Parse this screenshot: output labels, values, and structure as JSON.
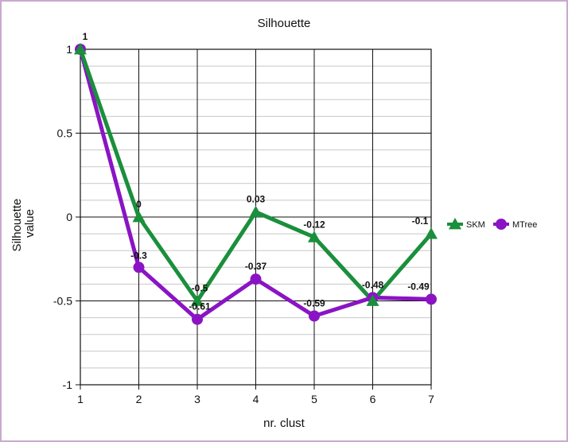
{
  "chart_data": {
    "type": "line",
    "title": "Silhouette",
    "xlabel": "nr. clust",
    "ylabel": [
      "Silhouette",
      "value"
    ],
    "x": [
      1,
      2,
      3,
      4,
      5,
      6,
      7
    ],
    "xlim": [
      1,
      7
    ],
    "ylim": [
      -1,
      1
    ],
    "yticks": [
      1,
      0.5,
      0,
      -0.5,
      -1
    ],
    "yticks_labels": [
      "1",
      "0.5",
      "0",
      "-0.5",
      "-1"
    ],
    "xticks_labels": [
      "1",
      "2",
      "3",
      "4",
      "5",
      "6",
      "7"
    ],
    "grid": true,
    "legend_position": "right",
    "series": [
      {
        "name": "SKM",
        "marker": "triangle",
        "color": "#1a8f3c",
        "values": [
          1,
          0,
          -0.5,
          0.03,
          -0.12,
          -0.5,
          -0.1
        ],
        "labels": [
          "1",
          "0",
          "-0.5",
          "0.03",
          "-0.12",
          "",
          "-0.1"
        ]
      },
      {
        "name": "MTree",
        "marker": "circle",
        "color": "#8a14c4",
        "values": [
          1,
          -0.3,
          -0.61,
          -0.37,
          -0.59,
          -0.48,
          -0.49
        ],
        "labels": [
          "",
          "-0.3",
          "-0.61",
          "-0.37",
          "-0.59",
          "-0.48",
          "-0.49"
        ]
      }
    ]
  }
}
